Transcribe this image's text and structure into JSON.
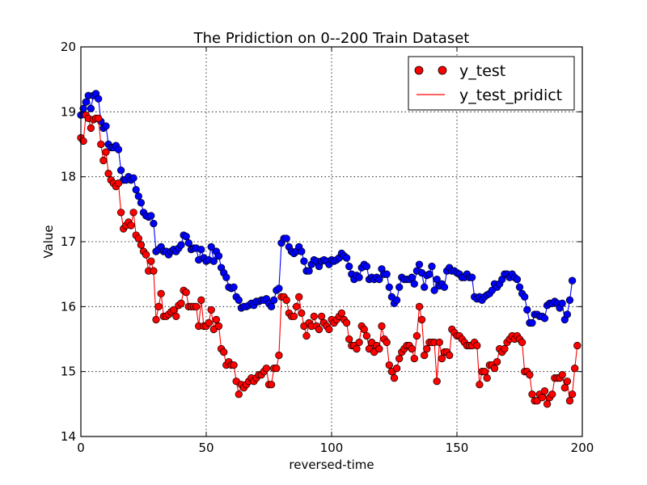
{
  "chart_data": {
    "type": "line",
    "title": "The Pridiction on 0--200 Train Dataset",
    "xlabel": "reversed-time",
    "ylabel": "Value",
    "xlim": [
      0,
      200
    ],
    "ylim": [
      14,
      20
    ],
    "xticks": [
      0,
      50,
      100,
      150,
      200
    ],
    "yticks": [
      14,
      15,
      16,
      17,
      18,
      19,
      20
    ],
    "grid": true,
    "legend_position": "top-right",
    "series": [
      {
        "name": "y_test",
        "color": "#ff0000",
        "style": "markers",
        "marker_edge": "#000000",
        "x_start": 0,
        "x_step": 1,
        "values": [
          18.6,
          18.55,
          18.95,
          18.9,
          18.75,
          18.88,
          18.9,
          18.9,
          18.5,
          18.25,
          18.38,
          18.05,
          17.95,
          17.9,
          17.85,
          17.9,
          17.45,
          17.2,
          17.25,
          17.3,
          17.25,
          17.45,
          17.1,
          17.05,
          16.95,
          16.85,
          16.8,
          16.55,
          16.7,
          16.55,
          15.8,
          16.0,
          16.2,
          15.85,
          15.85,
          15.88,
          15.92,
          15.95,
          15.85,
          16.02,
          16.05,
          16.25,
          16.22,
          16.0,
          16.0,
          16.0,
          16.0,
          15.7,
          16.1,
          15.7,
          15.7,
          15.75,
          15.95,
          15.65,
          15.8,
          15.7,
          15.35,
          15.3,
          15.1,
          15.15,
          15.1,
          15.1,
          14.85,
          14.65,
          14.8,
          14.75,
          14.8,
          14.85,
          14.9,
          14.85,
          14.9,
          14.95,
          14.95,
          15.0,
          15.05,
          14.8,
          14.8,
          15.05,
          15.05,
          15.25,
          16.15,
          16.15,
          16.1,
          15.9,
          15.85,
          15.85,
          16.0,
          16.15,
          15.9,
          15.7,
          15.55,
          15.75,
          15.7,
          15.85,
          15.7,
          15.65,
          15.85,
          15.75,
          15.7,
          15.65,
          15.8,
          15.75,
          15.8,
          15.85,
          15.9,
          15.8,
          15.75,
          15.5,
          15.4,
          15.4,
          15.35,
          15.45,
          15.7,
          15.65,
          15.55,
          15.35,
          15.45,
          15.3,
          15.4,
          15.35,
          15.7,
          15.5,
          15.45,
          15.1,
          15.0,
          14.9,
          15.05,
          15.2,
          15.3,
          15.35,
          15.4,
          15.4,
          15.35,
          15.2,
          15.55,
          16.0,
          15.8,
          15.25,
          15.35,
          15.45,
          15.45,
          15.45,
          14.85,
          15.45,
          15.2,
          15.3,
          15.3,
          15.25,
          15.65,
          15.6,
          15.55,
          15.55,
          15.5,
          15.45,
          15.4,
          15.4,
          15.4,
          15.45,
          15.4,
          14.8,
          15.0,
          15.0,
          14.9,
          15.1,
          15.1,
          15.05,
          15.15,
          15.35,
          15.3,
          15.35,
          15.45,
          15.5,
          15.55,
          15.5,
          15.55,
          15.5,
          15.45,
          15.0,
          15.0,
          14.95,
          14.65,
          14.55,
          14.55,
          14.65,
          14.6,
          14.7,
          14.5,
          14.6,
          14.65,
          14.9,
          14.9,
          14.9,
          14.95,
          14.75,
          14.85,
          14.55,
          14.65,
          15.05,
          15.4
        ]
      },
      {
        "name": "y_test_pridict",
        "color": "#ff0000",
        "style": "line",
        "x_start": 0,
        "x_step": 1,
        "values": [
          18.6,
          18.55,
          18.95,
          18.9,
          18.75,
          18.88,
          18.9,
          18.9,
          18.5,
          18.25,
          18.38,
          18.05,
          17.95,
          17.9,
          17.85,
          17.9,
          17.45,
          17.2,
          17.25,
          17.3,
          17.25,
          17.45,
          17.1,
          17.05,
          16.95,
          16.85,
          16.8,
          16.55,
          16.7,
          16.55,
          15.8,
          16.0,
          16.2,
          15.85,
          15.85,
          15.88,
          15.92,
          15.95,
          15.85,
          16.02,
          16.05,
          16.25,
          16.22,
          16.0,
          16.0,
          16.0,
          16.0,
          15.7,
          16.1,
          15.7,
          15.7,
          15.75,
          15.95,
          15.65,
          15.8,
          15.7,
          15.35,
          15.3,
          15.1,
          15.15,
          15.1,
          15.1,
          14.85,
          14.65,
          14.8,
          14.75,
          14.8,
          14.85,
          14.9,
          14.85,
          14.9,
          14.95,
          14.95,
          15.0,
          15.05,
          14.8,
          14.8,
          15.05,
          15.05,
          15.25,
          16.15,
          16.15,
          16.1,
          15.9,
          15.85,
          15.85,
          16.0,
          16.15,
          15.9,
          15.7,
          15.55,
          15.75,
          15.7,
          15.85,
          15.7,
          15.65,
          15.85,
          15.75,
          15.7,
          15.65,
          15.8,
          15.75,
          15.8,
          15.85,
          15.9,
          15.8,
          15.75,
          15.5,
          15.4,
          15.4,
          15.35,
          15.45,
          15.7,
          15.65,
          15.55,
          15.35,
          15.45,
          15.3,
          15.4,
          15.35,
          15.7,
          15.5,
          15.45,
          15.1,
          15.0,
          14.9,
          15.05,
          15.2,
          15.3,
          15.35,
          15.4,
          15.4,
          15.35,
          15.2,
          15.55,
          16.0,
          15.8,
          15.25,
          15.35,
          15.45,
          15.45,
          15.45,
          14.85,
          15.45,
          15.2,
          15.3,
          15.3,
          15.25,
          15.65,
          15.6,
          15.55,
          15.55,
          15.5,
          15.45,
          15.4,
          15.4,
          15.4,
          15.45,
          15.4,
          14.8,
          15.0,
          15.0,
          14.9,
          15.1,
          15.1,
          15.05,
          15.15,
          15.35,
          15.3,
          15.35,
          15.45,
          15.5,
          15.55,
          15.5,
          15.55,
          15.5,
          15.45,
          15.0,
          15.0,
          14.95,
          14.65,
          14.55,
          14.55,
          14.65,
          14.6,
          14.7,
          14.5,
          14.6,
          14.65,
          14.9,
          14.9,
          14.9,
          14.95,
          14.75,
          14.85,
          14.55,
          14.65,
          15.05,
          15.4
        ]
      },
      {
        "name": "",
        "color": "#0000ff",
        "style": "line-markers",
        "marker_edge": "#000000",
        "x_start": 0,
        "x_step": 1,
        "values": [
          18.95,
          19.05,
          19.15,
          19.25,
          19.05,
          19.25,
          19.28,
          19.2,
          18.85,
          18.75,
          18.78,
          18.5,
          18.45,
          18.45,
          18.48,
          18.42,
          18.1,
          17.95,
          17.95,
          18.0,
          17.95,
          17.98,
          17.8,
          17.7,
          17.6,
          17.45,
          17.4,
          17.38,
          17.4,
          17.28,
          16.85,
          16.88,
          16.92,
          16.85,
          16.85,
          16.8,
          16.85,
          16.88,
          16.85,
          16.9,
          16.95,
          17.1,
          17.08,
          16.98,
          16.88,
          16.9,
          16.9,
          16.72,
          16.88,
          16.75,
          16.7,
          16.72,
          16.92,
          16.7,
          16.85,
          16.78,
          16.6,
          16.52,
          16.45,
          16.3,
          16.28,
          16.3,
          16.15,
          16.1,
          15.98,
          16.0,
          16.0,
          16.02,
          16.05,
          16.02,
          16.08,
          16.08,
          16.1,
          16.1,
          16.12,
          16.05,
          16.0,
          16.1,
          16.25,
          16.28,
          16.98,
          17.05,
          17.05,
          16.92,
          16.85,
          16.82,
          16.85,
          16.92,
          16.85,
          16.7,
          16.55,
          16.55,
          16.65,
          16.72,
          16.7,
          16.62,
          16.7,
          16.72,
          16.7,
          16.65,
          16.72,
          16.7,
          16.72,
          16.75,
          16.82,
          16.78,
          16.75,
          16.62,
          16.5,
          16.42,
          16.48,
          16.45,
          16.6,
          16.65,
          16.62,
          16.42,
          16.45,
          16.42,
          16.45,
          16.42,
          16.58,
          16.5,
          16.5,
          16.3,
          16.15,
          16.05,
          16.1,
          16.3,
          16.45,
          16.42,
          16.42,
          16.42,
          16.45,
          16.35,
          16.55,
          16.65,
          16.52,
          16.3,
          16.48,
          16.5,
          16.62,
          16.25,
          16.42,
          16.32,
          16.35,
          16.3,
          16.55,
          16.6,
          16.55,
          16.55,
          16.52,
          16.5,
          16.45,
          16.45,
          16.5,
          16.45,
          16.45,
          16.15,
          16.12,
          16.15,
          16.1,
          16.15,
          16.18,
          16.2,
          16.25,
          16.35,
          16.3,
          16.35,
          16.42,
          16.5,
          16.5,
          16.45,
          16.5,
          16.45,
          16.42,
          16.3,
          16.2,
          16.15,
          15.95,
          15.75,
          15.75,
          15.88,
          15.88,
          15.85,
          15.85,
          15.82,
          16.02,
          16.05,
          16.05,
          16.08,
          16.05,
          15.98,
          16.05,
          15.8,
          15.88,
          16.1,
          16.4
        ]
      }
    ]
  }
}
